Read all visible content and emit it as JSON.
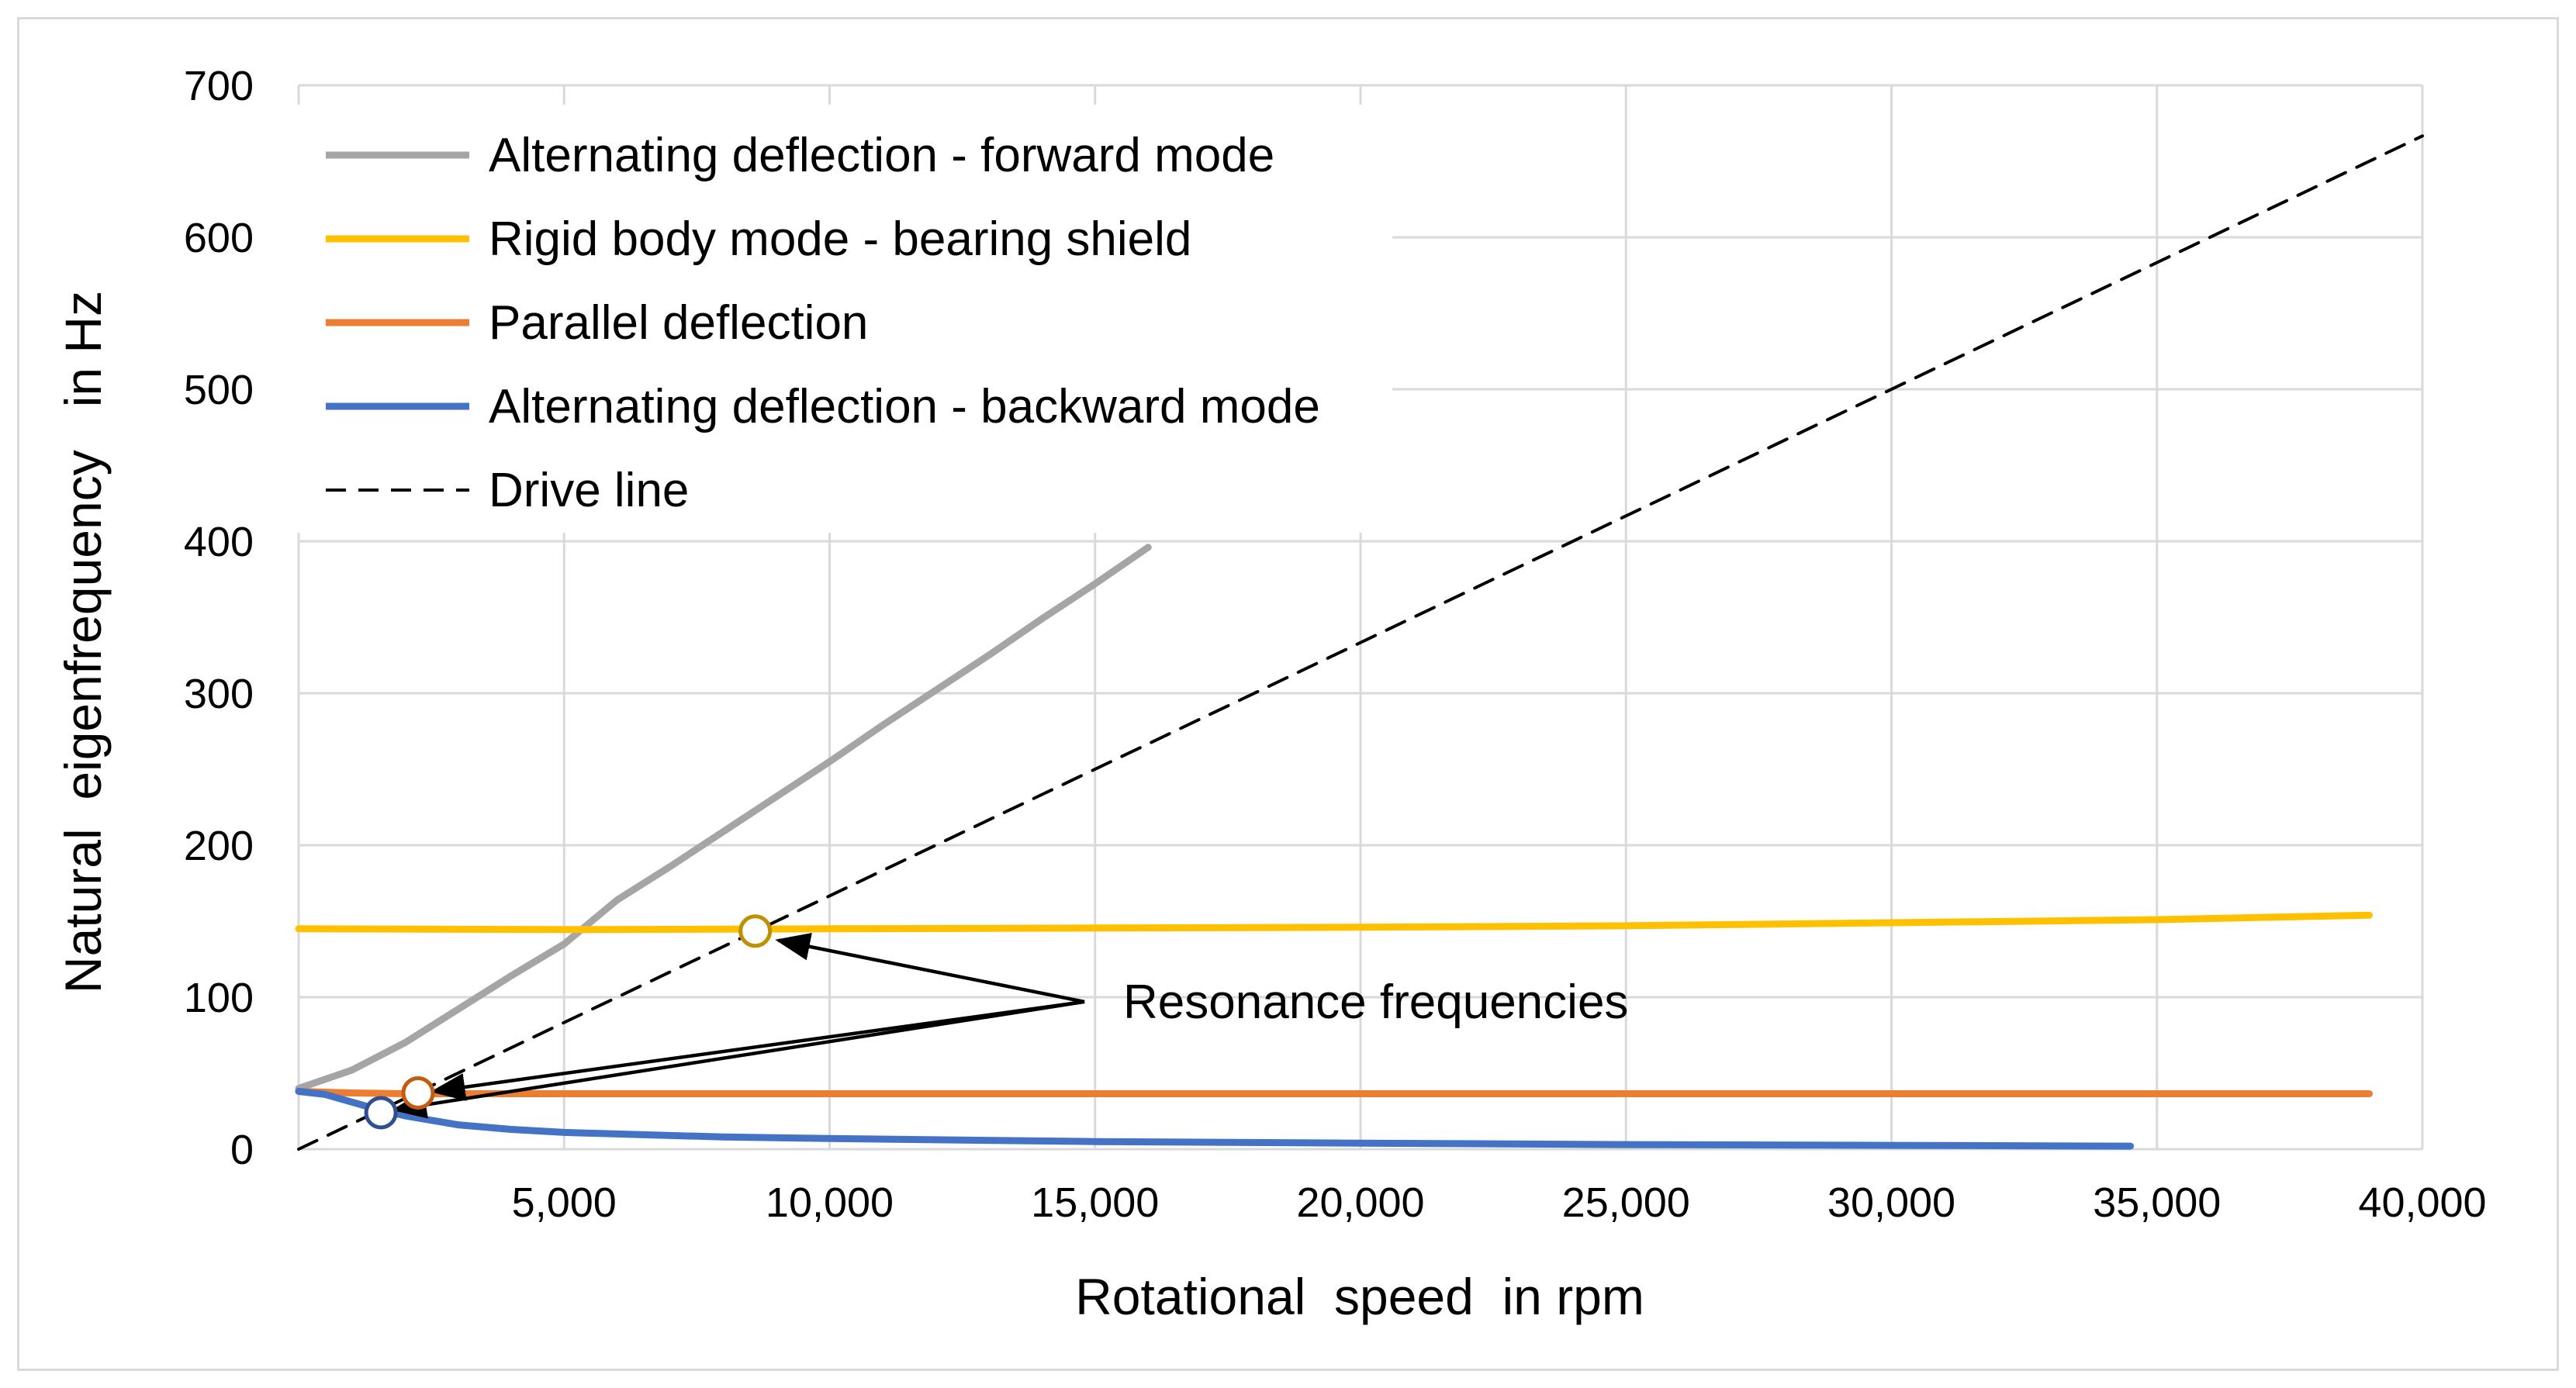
{
  "chart_data": {
    "type": "line",
    "title": "",
    "xlabel": "Rotational  speed  in rpm",
    "ylabel": "Natural  eigenfrequency   in Hz",
    "xlim": [
      0,
      40000
    ],
    "ylim": [
      0,
      700
    ],
    "x_ticks": [
      5000,
      10000,
      15000,
      20000,
      25000,
      30000,
      35000,
      40000
    ],
    "x_tick_labels": [
      "5,000",
      "10,000",
      "15,000",
      "20,000",
      "25,000",
      "30,000",
      "35,000",
      "40,000"
    ],
    "y_ticks": [
      0,
      100,
      200,
      300,
      400,
      500,
      600,
      700
    ],
    "y_tick_labels": [
      "0",
      "100",
      "200",
      "300",
      "400",
      "500",
      "600",
      "700"
    ],
    "grid": true,
    "legend_position": "top-left",
    "series": [
      {
        "name": "Alternating deflection - forward mode",
        "color": "#a5a5a5",
        "style": "solid",
        "x": [
          0,
          1000,
          2000,
          3000,
          4000,
          5000,
          6000,
          7000,
          8000,
          9000,
          10000,
          11000,
          12000,
          13000,
          14000,
          15000,
          16000
        ],
        "y": [
          40,
          52,
          70,
          92,
          114,
          135,
          164,
          186,
          209,
          232,
          255,
          279,
          302,
          325,
          349,
          372,
          396
        ]
      },
      {
        "name": "Rigid body mode - bearing shield",
        "color": "#ffc000",
        "style": "solid",
        "x": [
          0,
          5000,
          10000,
          15000,
          20000,
          25000,
          30000,
          35000,
          39000
        ],
        "y": [
          145,
          144.5,
          145,
          145.5,
          146,
          147,
          149,
          151,
          154
        ]
      },
      {
        "name": "Parallel deflection",
        "color": "#ed7d31",
        "style": "solid",
        "x": [
          0,
          1000,
          2000,
          3000,
          10000,
          20000,
          30000,
          39000
        ],
        "y": [
          38,
          37,
          36.5,
          36.5,
          36.5,
          36.5,
          36.5,
          36.5
        ]
      },
      {
        "name": "Alternating deflection - backward mode",
        "color": "#4472c4",
        "style": "solid",
        "x": [
          0,
          500,
          1000,
          1500,
          2000,
          3000,
          4000,
          5000,
          6000,
          8000,
          10000,
          15000,
          20000,
          25000,
          30000,
          34500
        ],
        "y": [
          38,
          36,
          31,
          26,
          22,
          16,
          13,
          11,
          10,
          8,
          7,
          5,
          4,
          3,
          2.5,
          2
        ]
      },
      {
        "name": "Drive line",
        "color": "#000000",
        "style": "dashed",
        "x": [
          0,
          40000
        ],
        "y": [
          0,
          666.7
        ]
      }
    ],
    "markers": [
      {
        "x": 8600,
        "y": 143.5,
        "color": "#bf9000"
      },
      {
        "x": 2250,
        "y": 37,
        "color": "#c55a11"
      },
      {
        "x": 1550,
        "y": 24,
        "color": "#2f4f8f"
      }
    ],
    "annotation": {
      "text": "Resonance frequencies",
      "anchor": {
        "x": 14800,
        "y": 97
      }
    }
  }
}
